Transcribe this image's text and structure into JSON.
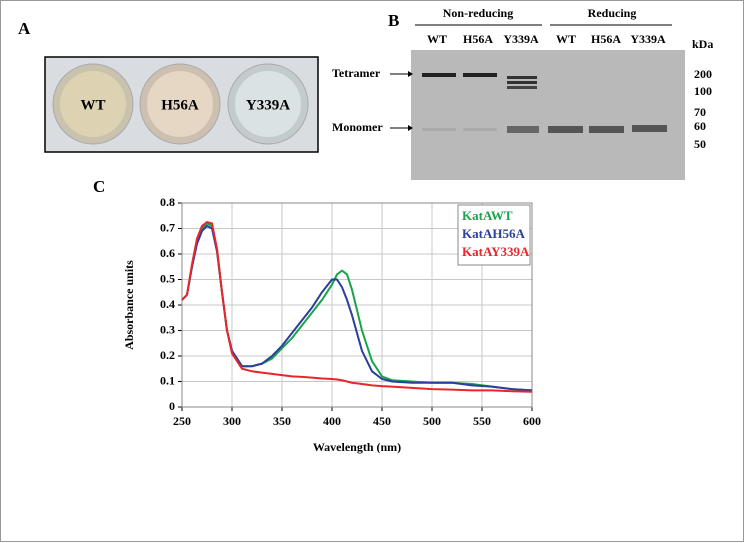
{
  "panel_a": {
    "label": "A",
    "wells": [
      "WT",
      "H56A",
      "Y339A"
    ]
  },
  "panel_b": {
    "label": "B",
    "groups": [
      "Non-reducing",
      "Reducing"
    ],
    "lanes": [
      "WT",
      "H56A",
      "Y339A",
      "WT",
      "H56A",
      "Y339A"
    ],
    "unit": "kDa",
    "markers": [
      "200",
      "100",
      "70",
      "60",
      "50"
    ],
    "bands": [
      "Tetramer",
      "Monomer"
    ]
  },
  "panel_c": {
    "label": "C"
  },
  "chart_data": {
    "type": "line",
    "xlabel": "Wavelength (nm)",
    "ylabel": "Absorbance units",
    "x": [
      250,
      255,
      260,
      265,
      270,
      275,
      280,
      285,
      290,
      295,
      300,
      310,
      320,
      330,
      340,
      350,
      360,
      370,
      380,
      390,
      400,
      405,
      410,
      415,
      420,
      430,
      440,
      450,
      460,
      480,
      500,
      520,
      540,
      560,
      580,
      600
    ],
    "series": [
      {
        "name": "KatAWT",
        "color": "#1aa34a",
        "values": [
          0.42,
          0.44,
          0.55,
          0.65,
          0.7,
          0.72,
          0.71,
          0.62,
          0.45,
          0.3,
          0.22,
          0.16,
          0.16,
          0.17,
          0.19,
          0.23,
          0.27,
          0.32,
          0.37,
          0.42,
          0.48,
          0.52,
          0.535,
          0.52,
          0.46,
          0.3,
          0.18,
          0.12,
          0.105,
          0.1,
          0.095,
          0.095,
          0.09,
          0.08,
          0.07,
          0.065
        ]
      },
      {
        "name": "KatAH56A",
        "color": "#2b3f9b",
        "values": [
          0.42,
          0.44,
          0.55,
          0.64,
          0.69,
          0.71,
          0.7,
          0.61,
          0.45,
          0.3,
          0.22,
          0.16,
          0.16,
          0.17,
          0.2,
          0.24,
          0.29,
          0.34,
          0.39,
          0.45,
          0.5,
          0.5,
          0.47,
          0.42,
          0.36,
          0.22,
          0.14,
          0.11,
          0.1,
          0.095,
          0.095,
          0.095,
          0.085,
          0.08,
          0.07,
          0.065
        ]
      },
      {
        "name": "KatAY339A",
        "color": "#e8262b",
        "values": [
          0.42,
          0.44,
          0.56,
          0.66,
          0.71,
          0.725,
          0.72,
          0.62,
          0.45,
          0.3,
          0.21,
          0.15,
          0.14,
          0.135,
          0.13,
          0.125,
          0.12,
          0.118,
          0.115,
          0.112,
          0.11,
          0.108,
          0.105,
          0.1,
          0.095,
          0.09,
          0.085,
          0.082,
          0.08,
          0.075,
          0.07,
          0.068,
          0.065,
          0.065,
          0.062,
          0.06
        ]
      }
    ],
    "xlim": [
      250,
      600
    ],
    "xticks": [
      250,
      300,
      350,
      400,
      450,
      500,
      550,
      600
    ],
    "ylim": [
      0,
      0.8
    ],
    "yticks": [
      0,
      0.1,
      0.2,
      0.3,
      0.4,
      0.5,
      0.6,
      0.7,
      0.8
    ],
    "grid": true,
    "legend": "upper right"
  }
}
